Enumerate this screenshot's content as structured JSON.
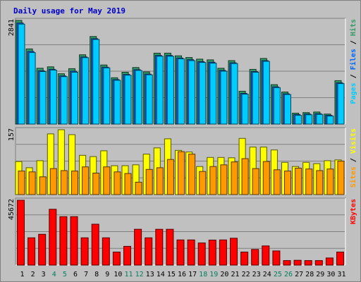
{
  "title": "Daily usage for May 2019",
  "chart_data": [
    {
      "type": "bar",
      "panel": "top",
      "ymax_label": "2841",
      "ylim": [
        0,
        2841
      ],
      "grid": true,
      "categories": [
        "1",
        "2",
        "3",
        "4",
        "5",
        "6",
        "7",
        "8",
        "9",
        "10",
        "11",
        "12",
        "13",
        "14",
        "15",
        "16",
        "17",
        "18",
        "19",
        "20",
        "21",
        "22",
        "23",
        "24",
        "25",
        "26",
        "27",
        "28",
        "29",
        "30",
        "31"
      ],
      "series": [
        {
          "name": "Hits",
          "color": "#339966",
          "values": [
            2841,
            2060,
            1530,
            1570,
            1380,
            1520,
            1900,
            2400,
            1620,
            1270,
            1420,
            1550,
            1430,
            1945,
            1945,
            1870,
            1825,
            1780,
            1760,
            1530,
            1740,
            900,
            1500,
            1800,
            1080,
            880,
            300,
            315,
            330,
            275,
            1190
          ]
        },
        {
          "name": "Files",
          "color": "#0066ff",
          "values": [
            2770,
            1990,
            1460,
            1500,
            1320,
            1450,
            1840,
            2340,
            1560,
            1220,
            1360,
            1490,
            1370,
            1880,
            1880,
            1810,
            1765,
            1710,
            1695,
            1470,
            1680,
            840,
            1440,
            1740,
            1020,
            830,
            260,
            275,
            285,
            240,
            1130
          ]
        },
        {
          "name": "Pages",
          "color": "#00ccff",
          "values": [
            2740,
            1960,
            1440,
            1480,
            1300,
            1420,
            1820,
            2320,
            1540,
            1200,
            1340,
            1470,
            1350,
            1860,
            1860,
            1790,
            1740,
            1690,
            1670,
            1450,
            1660,
            820,
            1420,
            1720,
            1000,
            810,
            240,
            255,
            265,
            220,
            1110
          ]
        }
      ],
      "right_label": [
        {
          "text": "Pages",
          "color": "#00ccff"
        },
        {
          "text": " / ",
          "color": "#000000"
        },
        {
          "text": "Files",
          "color": "#0066ff"
        },
        {
          "text": " / ",
          "color": "#000000"
        },
        {
          "text": "Hits",
          "color": "#339966"
        }
      ]
    },
    {
      "type": "bar",
      "panel": "middle",
      "ymax_label": "157",
      "ylim": [
        0,
        157
      ],
      "grid": true,
      "categories": [
        "1",
        "2",
        "3",
        "4",
        "5",
        "6",
        "7",
        "8",
        "9",
        "10",
        "11",
        "12",
        "13",
        "14",
        "15",
        "16",
        "17",
        "18",
        "19",
        "20",
        "21",
        "22",
        "23",
        "24",
        "25",
        "26",
        "27",
        "28",
        "29",
        "30",
        "31"
      ],
      "series": [
        {
          "name": "Visits",
          "color": "#ffff00",
          "values": [
            80,
            65,
            82,
            147,
            157,
            145,
            95,
            92,
            106,
            70,
            70,
            72,
            98,
            113,
            135,
            107,
            103,
            68,
            90,
            90,
            89,
            136,
            115,
            115,
            108,
            78,
            68,
            78,
            75,
            82,
            84
          ]
        },
        {
          "name": "Sites",
          "color": "#ff9900",
          "values": [
            57,
            55,
            43,
            63,
            58,
            57,
            67,
            52,
            67,
            55,
            51,
            30,
            61,
            65,
            85,
            104,
            98,
            56,
            68,
            72,
            79,
            87,
            63,
            80,
            60,
            57,
            64,
            62,
            58,
            62,
            81
          ]
        }
      ],
      "right_label": [
        {
          "text": "Sites",
          "color": "#ff9900"
        },
        {
          "text": " / ",
          "color": "#000000"
        },
        {
          "text": "Visits",
          "color": "#ffff00"
        }
      ]
    },
    {
      "type": "bar",
      "panel": "bottom",
      "ymax_label": "45672",
      "ylim": [
        0,
        45672
      ],
      "grid": true,
      "categories": [
        "1",
        "2",
        "3",
        "4",
        "5",
        "6",
        "7",
        "8",
        "9",
        "10",
        "11",
        "12",
        "13",
        "14",
        "15",
        "16",
        "17",
        "18",
        "19",
        "20",
        "21",
        "22",
        "23",
        "24",
        "25",
        "26",
        "27",
        "28",
        "29",
        "30",
        "31"
      ],
      "series": [
        {
          "name": "KBytes",
          "color": "#ff0000",
          "values": [
            45672,
            19200,
            21700,
            39300,
            34100,
            34100,
            19200,
            28800,
            19200,
            9200,
            13200,
            25200,
            19200,
            25200,
            25200,
            17700,
            17700,
            15600,
            17600,
            17700,
            18900,
            9200,
            11000,
            13500,
            10000,
            3200,
            3400,
            3200,
            3200,
            5000,
            9200
          ]
        }
      ],
      "right_label": [
        {
          "text": "KBytes",
          "color": "#ff0000"
        }
      ]
    }
  ],
  "day_label_colors": {
    "weekday": "#000000",
    "weekend": "#00805c"
  },
  "weekend_days": [
    "4",
    "5",
    "11",
    "12",
    "18",
    "19",
    "25",
    "26"
  ]
}
